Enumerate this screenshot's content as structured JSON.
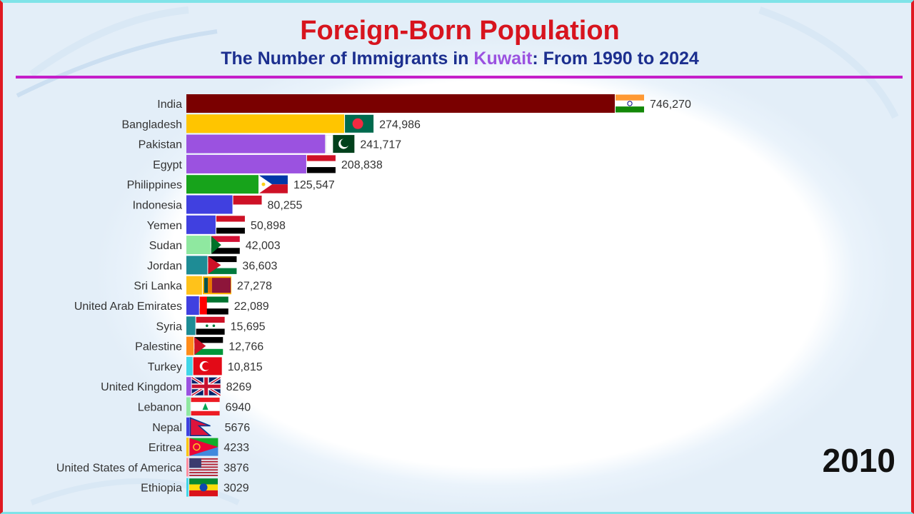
{
  "header": {
    "title": "Foreign-Born Population",
    "subtitle_prefix": "The Number of Immigrants in ",
    "subtitle_highlight": "Kuwait",
    "subtitle_suffix": ": From 1990 to 2024"
  },
  "year_label": "2010",
  "colors": {
    "title": "#d7141e",
    "subtitle": "#1c2f8f",
    "highlight": "#9b52e0",
    "rule": "#c51fc9",
    "frame_side": "#e01a22",
    "frame_top": "#7fe3e8"
  },
  "chart_data": {
    "type": "bar",
    "orientation": "horizontal",
    "title": "Foreign-Born Population",
    "subtitle": "The Number of Immigrants in Kuwait: From 1990 to 2024",
    "year": "2010",
    "xlim": [
      0,
      746270
    ],
    "grid": false,
    "categories": [
      "India",
      "Bangladesh",
      "Pakistan",
      "Egypt",
      "Philippines",
      "Indonesia",
      "Yemen",
      "Sudan",
      "Jordan",
      "Sri Lanka",
      "United Arab Emirates",
      "Syria",
      "Palestine",
      "Turkey",
      "United Kingdom",
      "Lebanon",
      "Nepal",
      "Eritrea",
      "United States of America",
      "Ethiopia"
    ],
    "values": [
      746270,
      274986,
      241717,
      208838,
      125547,
      80255,
      50898,
      42003,
      36603,
      27278,
      22089,
      15695,
      12766,
      10815,
      8269,
      6940,
      5676,
      4233,
      3876,
      3029
    ],
    "value_labels": [
      "746,270",
      "274,986",
      "241,717",
      "208,838",
      "125,547",
      "80,255",
      "50,898",
      "42,003",
      "36,603",
      "27,278",
      "22,089",
      "15,695",
      "12,766",
      "10,815",
      "8269",
      "6940",
      "5676",
      "4233",
      "3876",
      "3029"
    ],
    "bar_colors": [
      "#7a0000",
      "#ffc500",
      "#9b52e0",
      "#9b52e0",
      "#17a31b",
      "#4040e0",
      "#4040e0",
      "#8fe8a0",
      "#1e8c95",
      "#ffc21a",
      "#4040e0",
      "#1e8c95",
      "#ff8c1a",
      "#41d6e8",
      "#9b52e0",
      "#8fe8a0",
      "#4040e0",
      "#ffc500",
      "#ff8fa0",
      "#41d6e8"
    ],
    "flags": [
      "india-flag-icon",
      "bangladesh-flag-icon",
      "pakistan-flag-icon",
      "egypt-flag-icon",
      "philippines-flag-icon",
      "indonesia-flag-icon",
      "yemen-flag-icon",
      "sudan-flag-icon",
      "jordan-flag-icon",
      "sri-lanka-flag-icon",
      "uae-flag-icon",
      "syria-flag-icon",
      "palestine-flag-icon",
      "turkey-flag-icon",
      "uk-flag-icon",
      "lebanon-flag-icon",
      "nepal-flag-icon",
      "eritrea-flag-icon",
      "usa-flag-icon",
      "ethiopia-flag-icon"
    ]
  }
}
